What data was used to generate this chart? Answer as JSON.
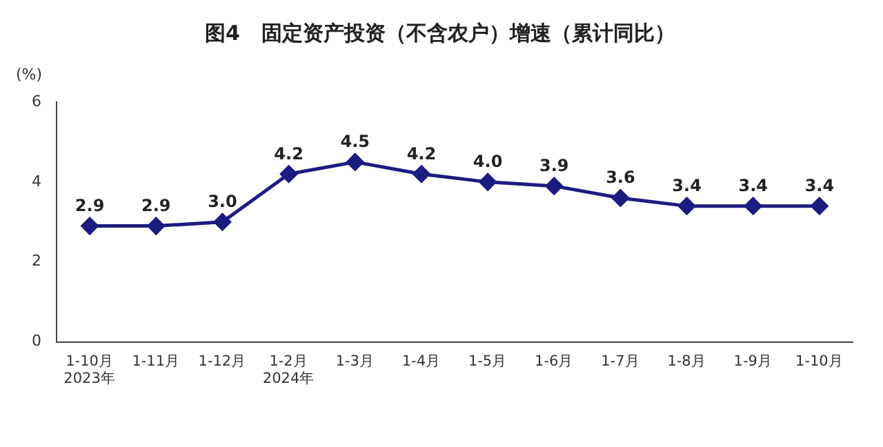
{
  "chart_data": {
    "type": "line",
    "title": "图4   固定资产投资（不含农户）增速（累计同比）",
    "ylabel": "(%)",
    "categories": [
      "1-10月\n2023年",
      "1-11月",
      "1-12月",
      "1-2月\n2024年",
      "1-3月",
      "1-4月",
      "1-5月",
      "1-6月",
      "1-7月",
      "1-8月",
      "1-9月",
      "1-10月"
    ],
    "series": [
      {
        "color": "#1c1c80",
        "values": [
          2.9,
          2.9,
          3.0,
          4.2,
          4.5,
          4.2,
          4.0,
          3.9,
          3.6,
          3.4,
          3.4,
          3.4
        ],
        "value_labels": [
          "2.9",
          "2.9",
          "3.0",
          "4.2",
          "4.5",
          "4.2",
          "4.0",
          "3.9",
          "3.6",
          "3.4",
          "3.4",
          "3.4"
        ]
      }
    ],
    "ylim": [
      0,
      6
    ],
    "yticks": [
      0,
      2,
      4,
      6
    ],
    "grid": false,
    "legend": false,
    "marker": "diamond",
    "line_style": "solid"
  }
}
